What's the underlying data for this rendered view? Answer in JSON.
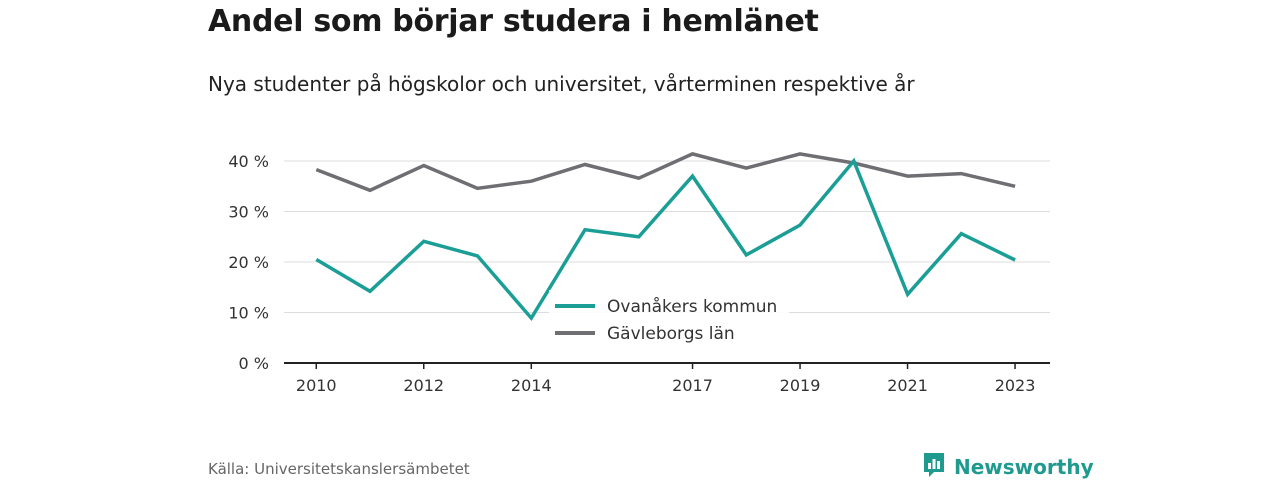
{
  "title": "Andel som börjar studera i hemlänet",
  "subtitle": "Nya studenter på högskolor och universitet, vårterminen respektive år",
  "source": "Källa: Universitetskanslersämbetet",
  "brand": {
    "name": "Newsworthy",
    "color": "#1f9a8f",
    "icon": "bar-chart-speech-bubble-icon"
  },
  "chart_data": {
    "type": "line",
    "x": [
      2010,
      2011,
      2012,
      2013,
      2014,
      2015,
      2016,
      2017,
      2018,
      2019,
      2020,
      2021,
      2022,
      2023
    ],
    "x_tick_labels": [
      "2010",
      "2012",
      "2014",
      "2017",
      "2019",
      "2021",
      "2023"
    ],
    "y_ticks": [
      0,
      10,
      20,
      30,
      40
    ],
    "y_tick_labels": [
      "0 %",
      "10 %",
      "20 %",
      "30 %",
      "40 %"
    ],
    "ylim": [
      0,
      40
    ],
    "xlim": [
      2009.4,
      2023.65
    ],
    "grid": true,
    "legend_position": "center",
    "series": [
      {
        "name": "Ovanåkers kommun",
        "color": "#1a9e96",
        "values": [
          20.5,
          14.2,
          24.1,
          21.2,
          8.9,
          26.4,
          25.0,
          37.0,
          21.4,
          27.3,
          40.0,
          13.6,
          25.6,
          20.4
        ]
      },
      {
        "name": "Gävleborgs län",
        "color": "#6e6e73",
        "values": [
          38.3,
          34.2,
          39.1,
          34.6,
          36.0,
          39.3,
          36.6,
          41.4,
          38.6,
          41.4,
          39.6,
          37.0,
          37.5,
          35.0
        ]
      }
    ]
  }
}
